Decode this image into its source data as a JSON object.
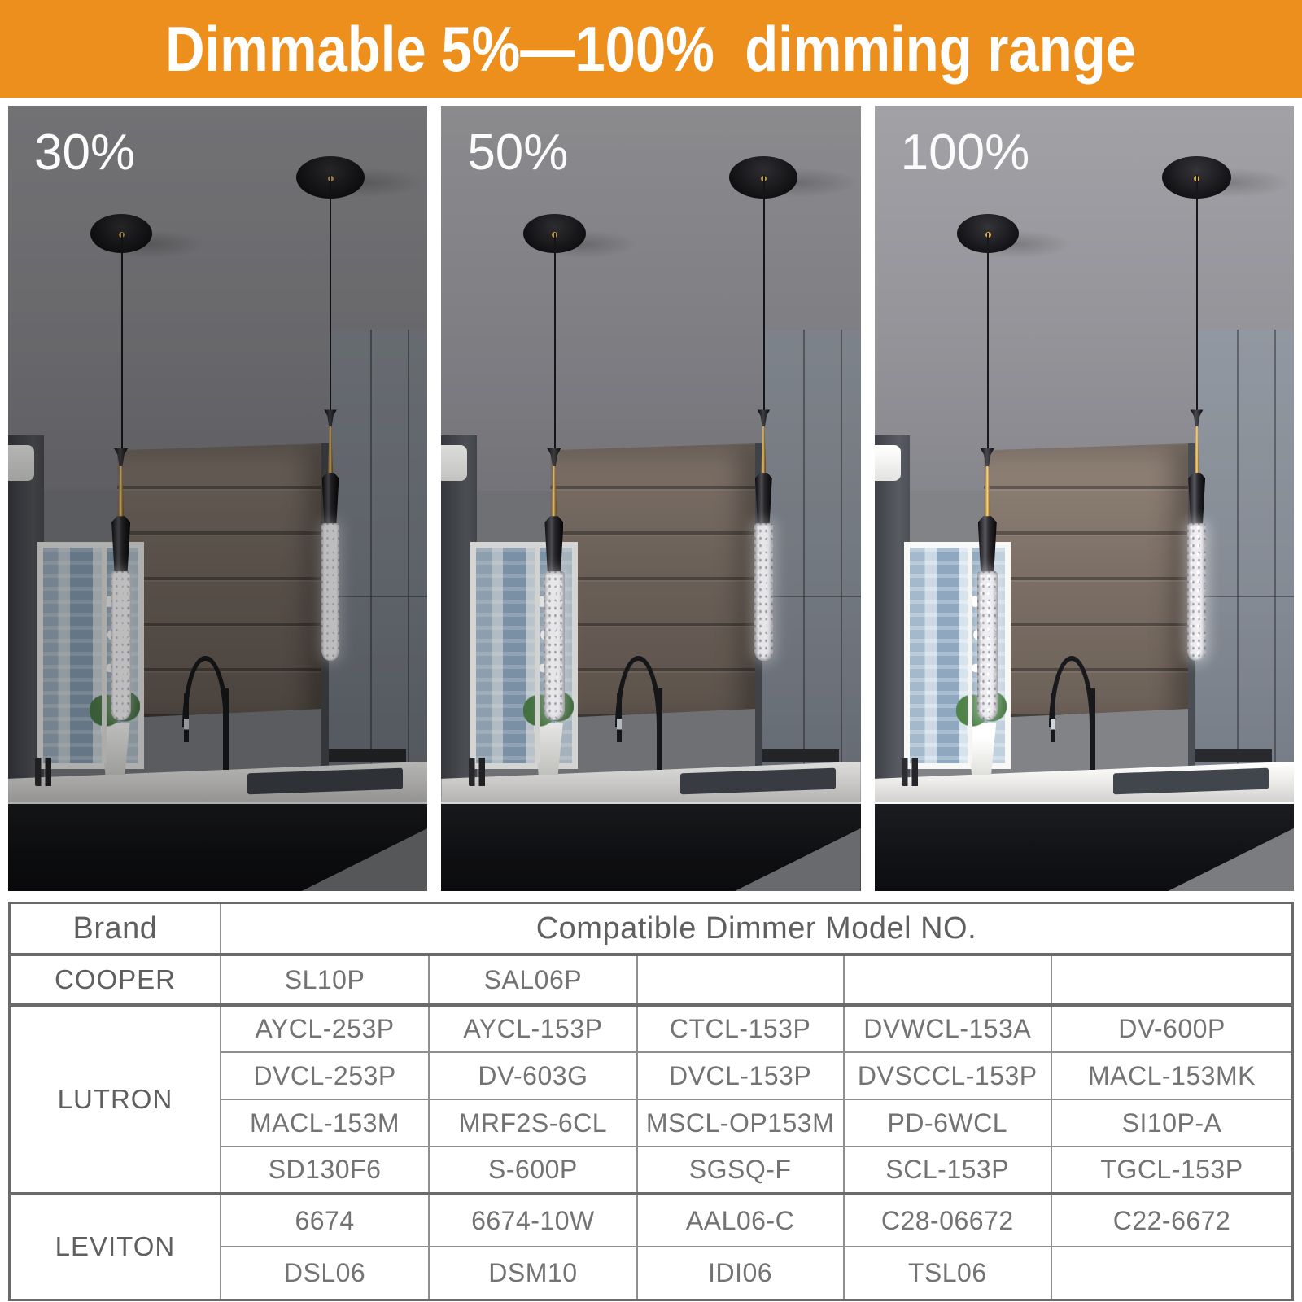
{
  "banner": {
    "text": "Dimmable 5%—100%  dimming range"
  },
  "colors": {
    "banner_bg": "#EC8F1D",
    "banner_text": "#FFFFFF",
    "table_text": "#737373",
    "table_border": "#6A6A6A"
  },
  "panels": [
    {
      "label": "30%"
    },
    {
      "label": "50%"
    },
    {
      "label": "100%"
    }
  ],
  "table": {
    "header": {
      "brand": "Brand",
      "models": "Compatible Dimmer Model NO."
    },
    "groups": [
      {
        "brand": "COOPER",
        "rows": [
          [
            "SL10P",
            "SAL06P",
            "",
            "",
            ""
          ]
        ]
      },
      {
        "brand": "LUTRON",
        "rows": [
          [
            "AYCL-253P",
            "AYCL-153P",
            "CTCL-153P",
            "DVWCL-153A",
            "DV-600P"
          ],
          [
            "DVCL-253P",
            "DV-603G",
            "DVCL-153P",
            "DVSCCL-153P",
            "MACL-153MK"
          ],
          [
            "MACL-153M",
            "MRF2S-6CL",
            "MSCL-OP153M",
            "PD-6WCL",
            "SI10P-A"
          ],
          [
            "SD130F6",
            "S-600P",
            "SGSQ-F",
            "SCL-153P",
            "TGCL-153P"
          ]
        ]
      },
      {
        "brand": "LEVITON",
        "rows": [
          [
            "6674",
            "6674-10W",
            "AAL06-C",
            "C28-06672",
            "C22-6672"
          ],
          [
            "DSL06",
            "DSM10",
            "IDI06",
            "TSL06",
            ""
          ]
        ]
      }
    ]
  }
}
